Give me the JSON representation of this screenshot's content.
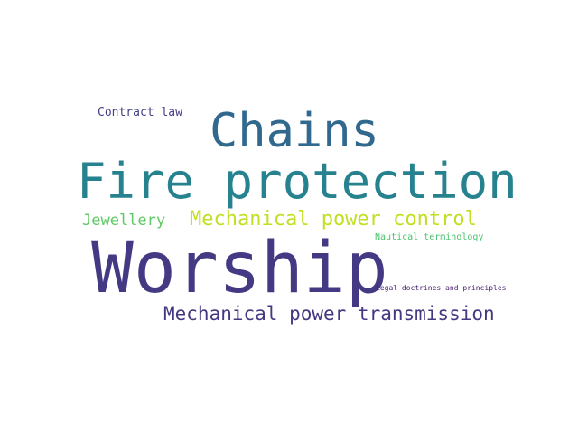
{
  "words": [
    {
      "text": "Contract law",
      "color": "#433e85"
    },
    {
      "text": "Chains",
      "color": "#31688e"
    },
    {
      "text": "Fire protection",
      "color": "#26828e"
    },
    {
      "text": "Jewellery",
      "color": "#5ec962"
    },
    {
      "text": "Mechanical power control",
      "color": "#c2df23"
    },
    {
      "text": "Nautical terminology",
      "color": "#4ac16d"
    },
    {
      "text": "Worship",
      "color": "#443a83"
    },
    {
      "text": "Legal doctrines and principles",
      "color": "#482173"
    },
    {
      "text": "Mechanical power transmission",
      "color": "#453781"
    }
  ]
}
